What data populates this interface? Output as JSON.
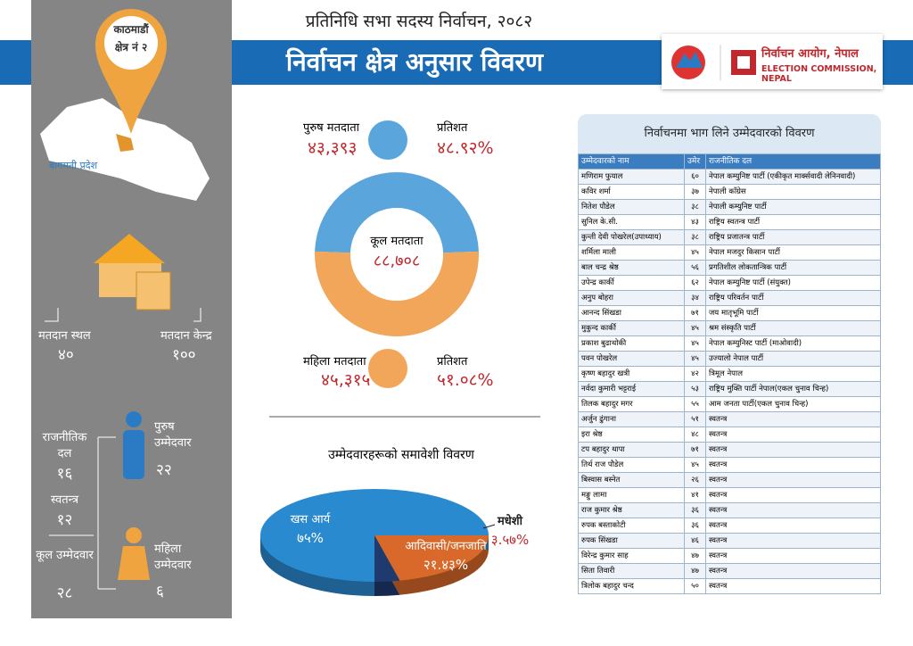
{
  "header": {
    "subtitle": "प्रतिनिधि सभा सदस्य निर्वाचन, २०८२",
    "title": "निर्वाचन क्षेत्र अनुसार विवरण",
    "logo_np": "निर्वाचन आयोग, नेपाल",
    "logo_en": "ELECTION COMMISSION, NEPAL"
  },
  "constituency": {
    "name": "काठमाडौं",
    "number": "क्षेत्र नं २",
    "province": "बागमती प्रदेश"
  },
  "polling": {
    "places_label": "मतदान स्थल",
    "places": "४०",
    "centers_label": "मतदान केन्द्र",
    "centers": "१००"
  },
  "candidates_summary": {
    "party_label": "राजनीतिक दल",
    "party": "१६",
    "independent_label": "स्वतन्त्र",
    "independent": "१२",
    "total_label": "कूल उम्मेदवार",
    "total": "२८",
    "male_label": "पुरुष उम्मेदवार",
    "male": "२२",
    "female_label": "महिला उम्मेदवार",
    "female": "६"
  },
  "voters": {
    "total_label": "कूल मतदाता",
    "total": "८८,७०८",
    "groups": [
      {
        "label": "पुरुष मतदाता",
        "count": "४३,३९३",
        "percent_label": "प्रतिशत",
        "percent": 48.92,
        "percent_text": "४८.९२%",
        "color": "#5aa6dc"
      },
      {
        "label": "महिला मतदाता",
        "count": "४५,३१५",
        "percent_label": "प्रतिशत",
        "percent": 51.08,
        "percent_text": "५१.०८%",
        "color": "#f2a65a"
      }
    ]
  },
  "inclusion": {
    "type": "pie",
    "title": "उम्मेदवारहरूको समावेशी विवरण",
    "categories": [
      "खस आर्य",
      "आदिवासी/जनजाति",
      "मधेशी"
    ],
    "values": [
      75,
      21.43,
      3.57
    ],
    "value_labels": [
      "७५%",
      "२१.४३%",
      "३.५७%"
    ],
    "colors": [
      "#2a8ad0",
      "#d9692a",
      "#1f3a6e"
    ]
  },
  "table": {
    "title": "निर्वाचनमा भाग लिने उम्मेदवारको विवरण",
    "columns": [
      "उम्मेदवारको नाम",
      "उमेर",
      "राजनीतिक दल"
    ],
    "rows": [
      [
        "मणिराम फुयाल",
        "६०",
        "नेपाल कम्युनिष्ट पार्टी (एकीकृत मार्क्सवादी लेनिनवादी)"
      ],
      [
        "कविर शर्मा",
        "३७",
        "नेपाली काँग्रेस"
      ],
      [
        "नितेश पौडेल",
        "३८",
        "नेपाली कम्युनिष्ट पार्टी"
      ],
      [
        "सुनिल के.सी.",
        "४३",
        "राष्ट्रिय स्वतन्त्र पार्टी"
      ],
      [
        "कुन्ती देवी पोखरेल(उपाध्याय)",
        "३८",
        "राष्ट्रिय प्रजातन्त्र पार्टी"
      ],
      [
        "शर्मिला माली",
        "४५",
        "नेपाल मजदुर किसान पार्टी"
      ],
      [
        "बाल चन्द्र श्रेष्ठ",
        "५६",
        "प्रगतिशील लोकतान्त्रिक पार्टी"
      ],
      [
        "उपेन्द्र कार्की",
        "६२",
        "नेपाल कम्युनिष्ट पार्टी (संयुक्त)"
      ],
      [
        "अनुप बोहरा",
        "३४",
        "राष्ट्रिय परिवर्तन पार्टी"
      ],
      [
        "आनन्द सिंखडा",
        "७१",
        "जय मातृभूमि पार्टी"
      ],
      [
        "मुकुन्द कार्की",
        "४५",
        "श्रम संस्कृति पार्टी"
      ],
      [
        "प्रकाश बुढाथोकी",
        "४५",
        "नेपाल कम्युनिस्ट पार्टी (माओवादी)"
      ],
      [
        "पवन पोखरेल",
        "४५",
        "उज्यालो नेपाल पार्टी"
      ],
      [
        "कृष्ण बहादुर खत्री",
        "४२",
        "त्रिमूल नेपाल"
      ],
      [
        "नर्वदा कुमारी भट्टराई",
        "५३",
        "राष्ट्रिय मुक्ति पार्टी नेपाल(एकल चुनाव चिन्ह)"
      ],
      [
        "तिलक बहादुर मगर",
        "५५",
        "आम जनता पार्टी(एकल चुनाव चिन्ह)"
      ],
      [
        "अर्जुन ढुंगाना",
        "५१",
        "स्वतन्त्र"
      ],
      [
        "इरा श्रेष्ठ",
        "४८",
        "स्वतन्त्र"
      ],
      [
        "टप बहादुर थापा",
        "७१",
        "स्वतन्त्र"
      ],
      [
        "तिर्थ राज पौडेल",
        "४५",
        "स्वतन्त्र"
      ],
      [
        "बिस्वास बस्नेत",
        "२६",
        "स्वतन्त्र"
      ],
      [
        "मङ्गु लामा",
        "४१",
        "स्वतन्त्र"
      ],
      [
        "राज कुमार श्रेष्ठ",
        "३६",
        "स्वतन्त्र"
      ],
      [
        "रुपक बस्ताकोटी",
        "३६",
        "स्वतन्त्र"
      ],
      [
        "रुपक सिंखडा",
        "४६",
        "स्वतन्त्र"
      ],
      [
        "विरेन्द्र कुमार साह",
        "४७",
        "स्वतन्त्र"
      ],
      [
        "सिता तिवारी",
        "४७",
        "स्वतन्त्र"
      ],
      [
        "त्रिलोक बहादुर चन्द",
        "५०",
        "स्वतन्त्र"
      ]
    ]
  }
}
